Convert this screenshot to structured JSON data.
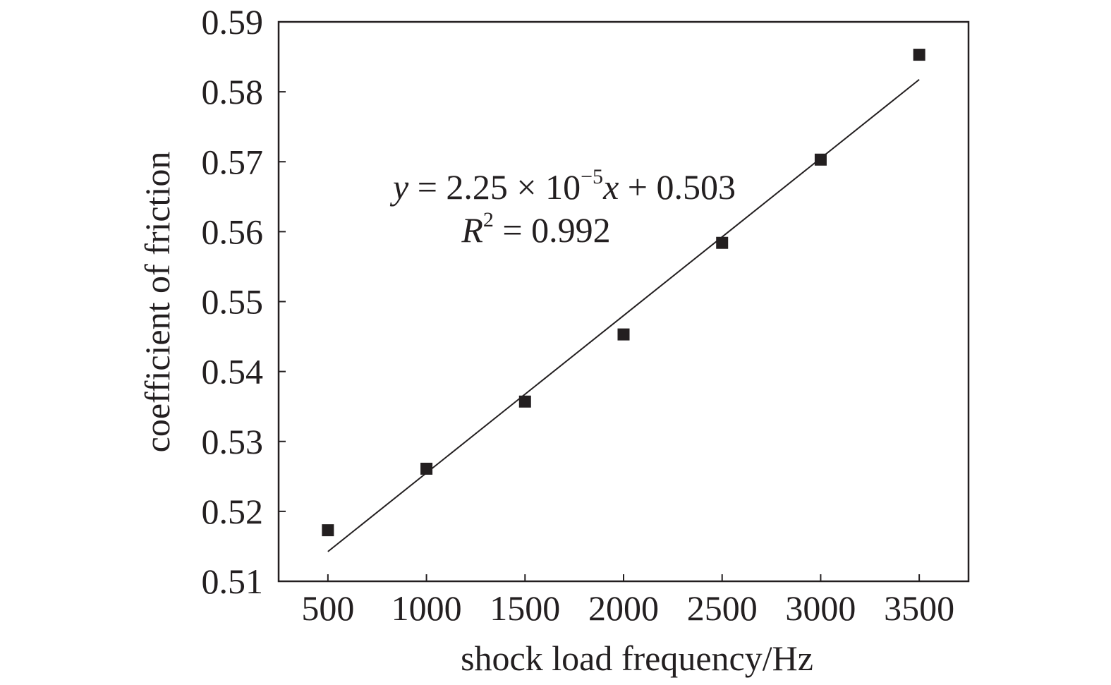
{
  "chart_data": {
    "type": "scatter",
    "xlabel": "shock load frequency/Hz",
    "ylabel": "coefficient of friction",
    "xlim": [
      250,
      3750
    ],
    "ylim": [
      0.51,
      0.59
    ],
    "x_ticks": [
      "500",
      "1000",
      "1500",
      "2000",
      "2500",
      "3000",
      "3500"
    ],
    "y_ticks": [
      "0.51",
      "0.52",
      "0.53",
      "0.54",
      "0.55",
      "0.56",
      "0.57",
      "0.58",
      "0.59"
    ],
    "grid": false,
    "points": [
      {
        "x": 500,
        "y": 0.5173
      },
      {
        "x": 1000,
        "y": 0.5261
      },
      {
        "x": 1500,
        "y": 0.5357
      },
      {
        "x": 2000,
        "y": 0.5453
      },
      {
        "x": 2500,
        "y": 0.5584
      },
      {
        "x": 3000,
        "y": 0.5703
      },
      {
        "x": 3500,
        "y": 0.5853
      }
    ],
    "fit": {
      "slope": 2.25e-05,
      "intercept": 0.503,
      "x_start": 500,
      "x_end": 3500
    },
    "annotation": {
      "eq_y": "y",
      "eq_mid": " = 2.25 × 10",
      "eq_exp": "−5",
      "eq_x": "x",
      "eq_end": " + 0.503",
      "r_letter": "R",
      "r_exp": "2",
      "r_value": " = 0.992"
    },
    "colors": {
      "marker": "#231f20",
      "line": "#231f20",
      "axis": "#231f20"
    }
  }
}
